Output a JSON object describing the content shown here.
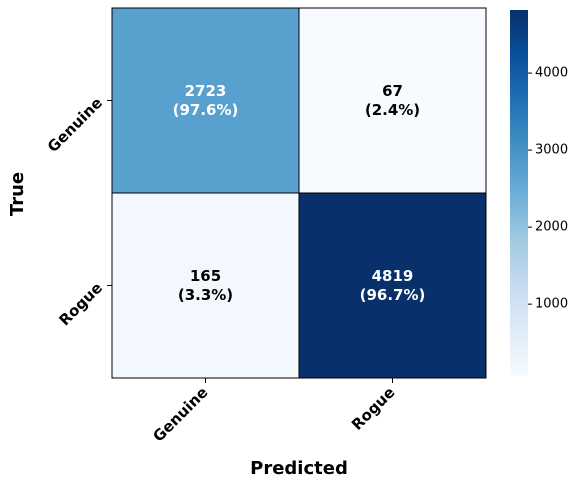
{
  "chart_data": {
    "type": "heatmap",
    "x_label": "Predicted",
    "y_label": "True",
    "x_categories": [
      "Genuine",
      "Rogue"
    ],
    "y_categories": [
      "Genuine",
      "Rogue"
    ],
    "values": [
      [
        2723,
        67
      ],
      [
        165,
        4819
      ]
    ],
    "value_labels": [
      [
        "2723\n(97.6%)",
        "67\n(2.4%)"
      ],
      [
        "165\n(3.3%)",
        "4819\n(96.7%)"
      ]
    ],
    "colormap": "Blues",
    "clim": [
      67,
      4819
    ],
    "colorbar_ticks": [
      1000,
      2000,
      3000,
      4000
    ]
  }
}
